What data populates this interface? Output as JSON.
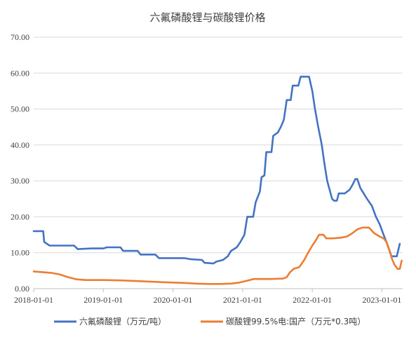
{
  "chart_data": {
    "type": "line",
    "title": "六氟磷酸锂与碳酸锂价格",
    "xlabel": "",
    "ylabel": "",
    "ylim": [
      0,
      70
    ],
    "yticks": [
      "0.00",
      "10.00",
      "20.00",
      "30.00",
      "40.00",
      "50.00",
      "60.00",
      "70.00"
    ],
    "xticks": [
      "2018-01-01",
      "2019-01-01",
      "2020-01-01",
      "2021-01-01",
      "2022-01-01",
      "2023-01-01"
    ],
    "xrange": [
      "2018-01-01",
      "2023-04-20"
    ],
    "grid": "horizontal",
    "legend": "bottom",
    "series": [
      {
        "name": "六氟磷酸锂（万元/吨）",
        "color": "#4472C4",
        "points": [
          [
            "2018-01-01",
            16.0
          ],
          [
            "2018-02-20",
            16.0
          ],
          [
            "2018-02-25",
            13.0
          ],
          [
            "2018-03-25",
            12.0
          ],
          [
            "2018-06-01",
            12.0
          ],
          [
            "2018-08-01",
            12.0
          ],
          [
            "2018-08-20",
            11.0
          ],
          [
            "2018-11-01",
            11.2
          ],
          [
            "2019-01-01",
            11.2
          ],
          [
            "2019-01-20",
            11.5
          ],
          [
            "2019-04-01",
            11.5
          ],
          [
            "2019-04-15",
            10.5
          ],
          [
            "2019-07-01",
            10.5
          ],
          [
            "2019-07-15",
            9.5
          ],
          [
            "2019-10-01",
            9.5
          ],
          [
            "2019-10-20",
            8.5
          ],
          [
            "2020-03-01",
            8.5
          ],
          [
            "2020-04-01",
            8.2
          ],
          [
            "2020-06-01",
            8.0
          ],
          [
            "2020-06-15",
            7.2
          ],
          [
            "2020-08-01",
            7.0
          ],
          [
            "2020-08-15",
            7.5
          ],
          [
            "2020-09-20",
            8.0
          ],
          [
            "2020-10-15",
            9.0
          ],
          [
            "2020-11-01",
            10.5
          ],
          [
            "2020-12-01",
            11.5
          ],
          [
            "2020-12-20",
            13.0
          ],
          [
            "2021-01-10",
            15.0
          ],
          [
            "2021-01-25",
            20.0
          ],
          [
            "2021-02-25",
            20.0
          ],
          [
            "2021-03-10",
            24.0
          ],
          [
            "2021-04-01",
            27.0
          ],
          [
            "2021-04-10",
            31.0
          ],
          [
            "2021-04-25",
            31.5
          ],
          [
            "2021-05-05",
            38.0
          ],
          [
            "2021-06-01",
            38.0
          ],
          [
            "2021-06-10",
            42.5
          ],
          [
            "2021-07-05",
            43.5
          ],
          [
            "2021-07-20",
            45.0
          ],
          [
            "2021-08-05",
            47.0
          ],
          [
            "2021-08-20",
            52.5
          ],
          [
            "2021-09-10",
            52.5
          ],
          [
            "2021-09-20",
            56.5
          ],
          [
            "2021-10-20",
            56.5
          ],
          [
            "2021-11-01",
            59.0
          ],
          [
            "2021-12-15",
            59.0
          ],
          [
            "2022-01-01",
            55.0
          ],
          [
            "2022-01-15",
            50.0
          ],
          [
            "2022-02-01",
            45.0
          ],
          [
            "2022-02-20",
            40.0
          ],
          [
            "2022-03-05",
            35.0
          ],
          [
            "2022-03-20",
            30.0
          ],
          [
            "2022-04-15",
            25.0
          ],
          [
            "2022-04-25",
            24.5
          ],
          [
            "2022-05-10",
            24.5
          ],
          [
            "2022-05-20",
            26.5
          ],
          [
            "2022-06-20",
            26.5
          ],
          [
            "2022-07-15",
            27.5
          ],
          [
            "2022-08-01",
            29.0
          ],
          [
            "2022-08-15",
            30.5
          ],
          [
            "2022-08-25",
            30.5
          ],
          [
            "2022-09-10",
            28.0
          ],
          [
            "2022-10-15",
            25.0
          ],
          [
            "2022-11-10",
            23.0
          ],
          [
            "2022-12-01",
            20.0
          ],
          [
            "2022-12-20",
            18.0
          ],
          [
            "2023-01-10",
            15.0
          ],
          [
            "2023-02-01",
            12.0
          ],
          [
            "2023-02-20",
            9.0
          ],
          [
            "2023-03-20",
            9.0
          ],
          [
            "2023-04-05",
            12.5
          ]
        ]
      },
      {
        "name": "碳酸锂99.5%电:国产（万元*0.3吨）",
        "color": "#ED7D31",
        "points": [
          [
            "2018-01-01",
            4.8
          ],
          [
            "2018-02-15",
            4.6
          ],
          [
            "2018-04-01",
            4.4
          ],
          [
            "2018-05-15",
            4.0
          ],
          [
            "2018-07-01",
            3.2
          ],
          [
            "2018-08-15",
            2.6
          ],
          [
            "2018-10-01",
            2.4
          ],
          [
            "2019-01-01",
            2.4
          ],
          [
            "2019-04-01",
            2.3
          ],
          [
            "2019-07-01",
            2.1
          ],
          [
            "2019-10-01",
            1.9
          ],
          [
            "2020-01-01",
            1.7
          ],
          [
            "2020-03-01",
            1.6
          ],
          [
            "2020-05-01",
            1.4
          ],
          [
            "2020-07-01",
            1.3
          ],
          [
            "2020-09-01",
            1.3
          ],
          [
            "2020-11-01",
            1.4
          ],
          [
            "2020-12-15",
            1.7
          ],
          [
            "2021-01-15",
            2.1
          ],
          [
            "2021-03-01",
            2.7
          ],
          [
            "2021-06-01",
            2.7
          ],
          [
            "2021-08-01",
            2.8
          ],
          [
            "2021-08-20",
            3.2
          ],
          [
            "2021-09-05",
            4.5
          ],
          [
            "2021-09-25",
            5.5
          ],
          [
            "2021-10-25",
            6.0
          ],
          [
            "2021-11-20",
            8.0
          ],
          [
            "2021-12-10",
            10.0
          ],
          [
            "2022-01-01",
            12.0
          ],
          [
            "2022-01-20",
            13.5
          ],
          [
            "2022-02-05",
            15.0
          ],
          [
            "2022-03-01",
            15.0
          ],
          [
            "2022-03-15",
            14.0
          ],
          [
            "2022-04-20",
            14.0
          ],
          [
            "2022-06-01",
            14.2
          ],
          [
            "2022-07-01",
            14.5
          ],
          [
            "2022-08-01",
            15.5
          ],
          [
            "2022-08-25",
            16.5
          ],
          [
            "2022-09-20",
            17.0
          ],
          [
            "2022-10-25",
            17.0
          ],
          [
            "2022-11-20",
            15.5
          ],
          [
            "2022-12-20",
            14.5
          ],
          [
            "2023-01-10",
            14.0
          ],
          [
            "2023-01-25",
            13.0
          ],
          [
            "2023-02-10",
            10.5
          ],
          [
            "2023-02-25",
            8.0
          ],
          [
            "2023-03-10",
            6.5
          ],
          [
            "2023-03-25",
            5.5
          ],
          [
            "2023-04-05",
            5.5
          ],
          [
            "2023-04-15",
            7.8
          ]
        ]
      }
    ]
  }
}
